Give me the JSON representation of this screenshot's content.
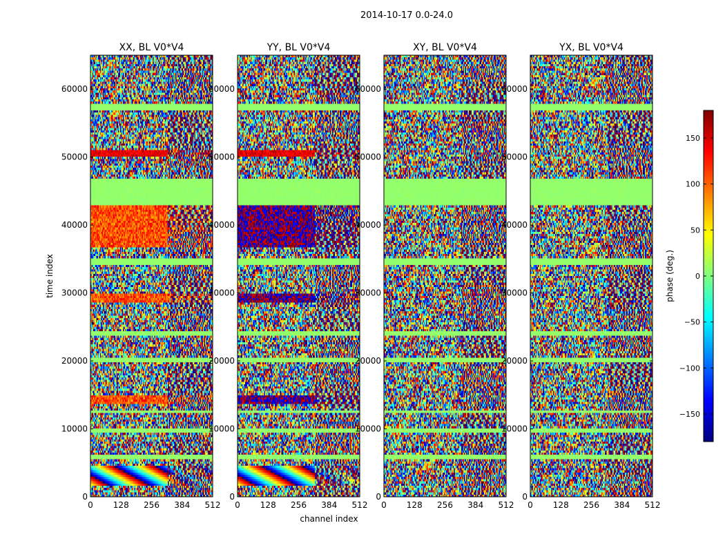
{
  "figure": {
    "suptitle": "2014-10-17 0.0-24.0"
  },
  "chart_data": [
    {
      "type": "heatmap",
      "title": "XX, BL V0*V4",
      "xlabel": "",
      "ylabel": "time index",
      "xlim": [
        0,
        512
      ],
      "ylim": [
        0,
        65000
      ],
      "xticks": [
        0,
        128,
        256,
        384,
        512
      ],
      "yticks": [
        0,
        10000,
        20000,
        30000,
        40000,
        50000,
        60000
      ],
      "value_label": "phase (deg.)"
    },
    {
      "type": "heatmap",
      "title": "YY, BL V0*V4",
      "xlabel": "channel index",
      "ylabel": "",
      "xlim": [
        0,
        512
      ],
      "ylim": [
        0,
        65000
      ],
      "xticks": [
        0,
        128,
        256,
        384,
        512
      ],
      "yticks": [
        0,
        10000,
        20000,
        30000,
        40000,
        50000,
        60000
      ],
      "value_label": "phase (deg.)"
    },
    {
      "type": "heatmap",
      "title": "XY, BL V0*V4",
      "xlabel": "",
      "ylabel": "",
      "xlim": [
        0,
        512
      ],
      "ylim": [
        0,
        65000
      ],
      "xticks": [
        0,
        128,
        256,
        384,
        512
      ],
      "yticks": [
        0,
        10000,
        20000,
        30000,
        40000,
        50000,
        60000
      ],
      "value_label": "phase (deg.)"
    },
    {
      "type": "heatmap",
      "title": "YX, BL V0*V4",
      "xlabel": "",
      "ylabel": "",
      "xlim": [
        0,
        512
      ],
      "ylim": [
        0,
        65000
      ],
      "xticks": [
        0,
        128,
        256,
        384,
        512
      ],
      "yticks": [
        0,
        10000,
        20000,
        30000,
        40000,
        50000,
        60000
      ],
      "value_label": "phase (deg.)"
    }
  ],
  "colorbar": {
    "label": "phase (deg.)",
    "range": [
      -180,
      180
    ],
    "ticks": [
      -150,
      -100,
      -50,
      0,
      50,
      100,
      150
    ],
    "tick_labels": [
      "−150",
      "−100",
      "−50",
      "0",
      "50",
      "100",
      "150"
    ],
    "colormap": "jet",
    "colors": [
      "#00007f",
      "#0000ff",
      "#007fff",
      "#00ffff",
      "#7fff7f",
      "#ffff00",
      "#ff7f00",
      "#ff0000",
      "#7f0000"
    ]
  }
}
